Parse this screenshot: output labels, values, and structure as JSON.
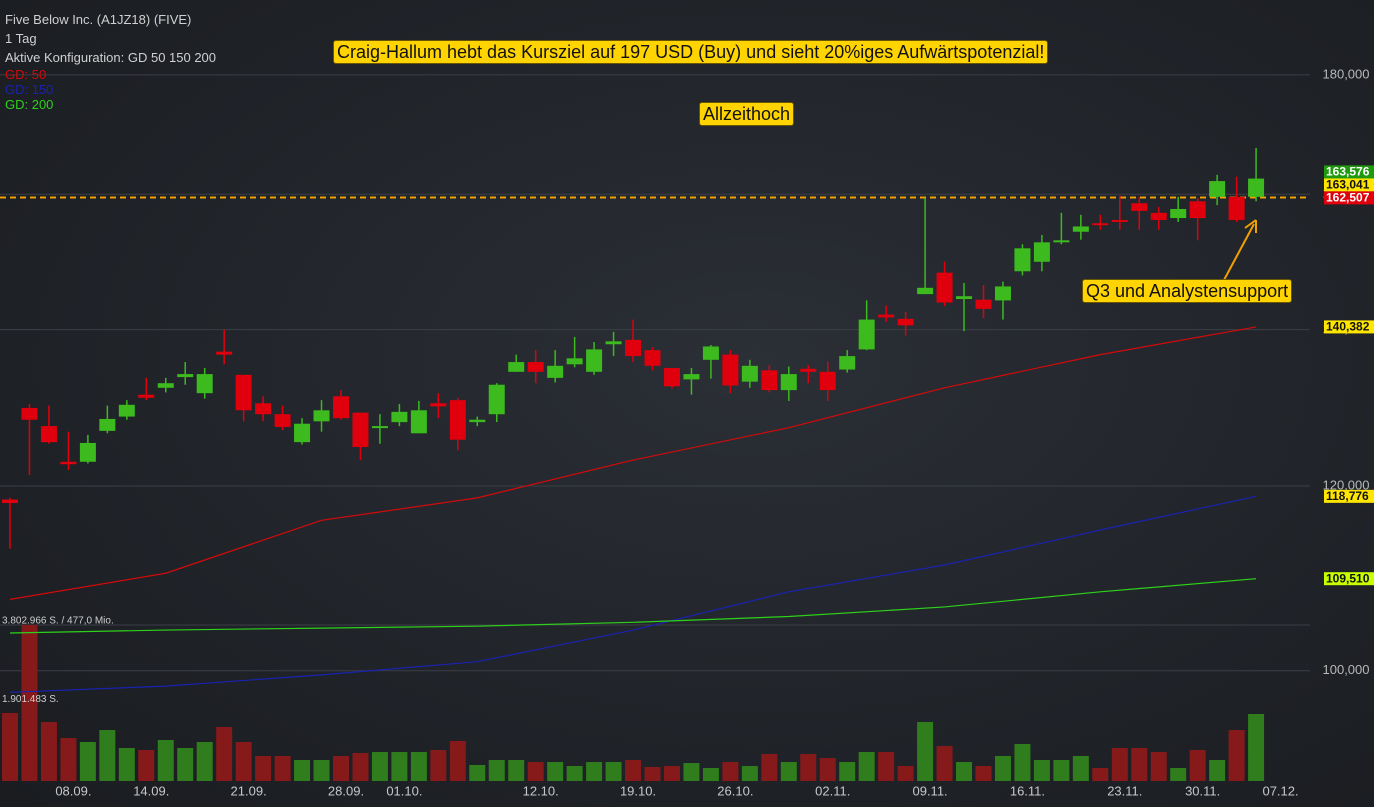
{
  "chart_data": {
    "type": "candlestick",
    "title": "Five Below Inc. (A1JZ18) (FIVE)",
    "subtitle": "1 Tag",
    "config_label": "Aktive Konfiguration: GD 50 150 200",
    "categories": [
      null,
      null,
      null,
      "08.09.",
      null,
      null,
      null,
      "14.09.",
      null,
      null,
      null,
      null,
      "21.09.",
      null,
      null,
      null,
      null,
      "28.09.",
      null,
      null,
      "01.10.",
      null,
      null,
      null,
      null,
      null,
      null,
      "12.10.",
      null,
      null,
      null,
      null,
      "19.10.",
      null,
      null,
      null,
      null,
      "26.10.",
      null,
      null,
      null,
      null,
      "02.11.",
      null,
      null,
      null,
      null,
      "09.11.",
      null,
      null,
      null,
      null,
      "16.11.",
      null,
      null,
      null,
      null,
      "23.11.",
      null,
      null,
      null,
      "30.11.",
      null,
      null,
      null,
      "07.12."
    ],
    "open": [
      118.4,
      129.6,
      127.3,
      122.9,
      122.9,
      126.7,
      128.5,
      131.3,
      132.2,
      133.6,
      131.5,
      137.0,
      133.9,
      130.2,
      128.8,
      125.3,
      127.9,
      131.1,
      129.0,
      127.1,
      127.8,
      126.4,
      130.2,
      130.6,
      127.8,
      128.8,
      134.3,
      135.6,
      133.5,
      135.3,
      134.3,
      138.0,
      138.6,
      137.2,
      134.8,
      133.3,
      135.9,
      136.6,
      133.0,
      134.5,
      131.9,
      134.7,
      134.3,
      134.6,
      137.3,
      142.1,
      141.5,
      145.0,
      148.1,
      144.3,
      144.2,
      144.1,
      148.3,
      149.7,
      152.6,
      154.2,
      155.5,
      156.0,
      158.6,
      157.1,
      156.3,
      158.9,
      159.6,
      159.6,
      159.6,
      null
    ],
    "high": [
      118.6,
      130.1,
      129.9,
      126.6,
      126.2,
      129.9,
      130.6,
      133.5,
      133.5,
      135.6,
      134.8,
      140.0,
      133.9,
      131.1,
      129.9,
      128.3,
      130.6,
      131.9,
      129.0,
      128.8,
      130.1,
      130.5,
      131.5,
      130.9,
      128.5,
      132.8,
      136.6,
      137.2,
      137.2,
      139.0,
      138.3,
      139.7,
      141.4,
      137.6,
      134.8,
      134.8,
      137.9,
      137.2,
      135.9,
      135.2,
      135.0,
      135.2,
      135.6,
      137.2,
      144.1,
      143.4,
      142.5,
      159.4,
      149.7,
      146.6,
      146.3,
      146.8,
      152.3,
      153.7,
      157.1,
      156.8,
      156.8,
      159.8,
      159.6,
      158.0,
      159.6,
      159.4,
      163.1,
      162.8,
      167.5,
      null
    ],
    "low": [
      112.8,
      121.3,
      125.1,
      121.9,
      122.7,
      126.4,
      128.1,
      130.6,
      131.6,
      132.6,
      130.8,
      135.3,
      127.9,
      127.9,
      126.8,
      125.0,
      126.6,
      128.1,
      123.1,
      125.1,
      127.3,
      126.4,
      128.3,
      124.3,
      127.3,
      127.8,
      134.3,
      132.8,
      132.9,
      134.9,
      133.9,
      136.4,
      135.6,
      134.5,
      132.1,
      131.3,
      133.4,
      131.5,
      132.2,
      131.6,
      130.5,
      132.8,
      130.5,
      134.2,
      137.2,
      141.1,
      139.2,
      145.0,
      143.3,
      139.8,
      141.6,
      141.4,
      147.7,
      148.3,
      152.3,
      153.0,
      154.5,
      154.5,
      154.5,
      154.5,
      155.7,
      152.9,
      158.3,
      155.7,
      158.9,
      null
    ],
    "close": [
      118.0,
      128.1,
      125.3,
      122.6,
      125.2,
      128.2,
      130.0,
      130.9,
      132.8,
      134.0,
      134.0,
      136.6,
      129.3,
      128.8,
      127.2,
      127.6,
      129.3,
      128.3,
      124.7,
      127.3,
      129.1,
      129.3,
      129.8,
      125.6,
      128.1,
      132.6,
      135.6,
      134.3,
      135.1,
      136.1,
      137.3,
      138.4,
      136.4,
      135.1,
      132.4,
      134.0,
      137.7,
      132.5,
      135.1,
      131.9,
      134.0,
      134.3,
      131.9,
      136.4,
      141.4,
      141.7,
      140.6,
      145.9,
      143.8,
      144.7,
      142.9,
      146.1,
      151.7,
      152.6,
      152.9,
      155.0,
      155.2,
      155.7,
      157.4,
      156.0,
      157.7,
      156.3,
      162.1,
      156.0,
      162.5,
      null
    ],
    "up_color": "#3cba1e",
    "down_color": "#e0000d",
    "ylim": [
      89.7,
      193.8
    ],
    "log_scale": true,
    "grid": true,
    "yticks": [
      {
        "value": 100,
        "label": "100,000"
      },
      {
        "value": 120,
        "label": "120,000"
      },
      {
        "value": 140,
        "label": "140,000"
      },
      {
        "value": 160,
        "label": "160,000"
      },
      {
        "value": 180,
        "label": "180,000"
      }
    ],
    "volume": {
      "values": [
        1647000,
        3780000,
        1429000,
        1041000,
        945000,
        1235000,
        799000,
        751000,
        993000,
        799000,
        945000,
        1308000,
        945000,
        606000,
        606000,
        509000,
        509000,
        606000,
        678000,
        702000,
        702000,
        702000,
        751000,
        969000,
        388000,
        509000,
        509000,
        460000,
        460000,
        363000,
        460000,
        460000,
        509000,
        339000,
        363000,
        436000,
        315000,
        460000,
        363000,
        654000,
        460000,
        654000,
        557000,
        460000,
        702000,
        702000,
        363000,
        1429000,
        848000,
        460000,
        363000,
        606000,
        896000,
        509000,
        509000,
        606000,
        315000,
        799000,
        799000,
        702000,
        315000,
        751000,
        509000,
        1235000,
        1623000,
        null
      ],
      "ylim": [
        0,
        3802966
      ],
      "yticks": [
        {
          "value": 1901483,
          "label": "1.901.483 S."
        },
        {
          "value": 3802966,
          "label": "3.802.966 S. / 477,0 Mio."
        }
      ],
      "up_color": "#2f7d1c",
      "down_color": "#861a1a"
    },
    "series": [
      {
        "name": "GD: 50",
        "color": "#d40a0a",
        "x": [
          0,
          8,
          16,
          24,
          32,
          40,
          48,
          56,
          64
        ],
        "values": [
          107.3,
          110.1,
          116.0,
          118.6,
          123.1,
          127.1,
          132.2,
          136.6,
          140.38
        ]
      },
      {
        "name": "GD: 150",
        "color": "#1a22b0",
        "x": [
          0,
          8,
          16,
          24,
          32,
          40,
          48,
          56,
          64
        ],
        "values": [
          97.9,
          98.5,
          99.6,
          100.9,
          104.1,
          108.1,
          111.0,
          114.9,
          118.78
        ]
      },
      {
        "name": "GD: 200",
        "color": "#2ed11a",
        "x": [
          0,
          8,
          16,
          24,
          32,
          40,
          48,
          56,
          64
        ],
        "values": [
          103.8,
          104.1,
          104.3,
          104.5,
          104.9,
          105.5,
          106.5,
          108.1,
          109.51
        ]
      }
    ],
    "hline": {
      "value": 159.5,
      "color": "#f0a000"
    },
    "price_tags": [
      {
        "value": 163.576,
        "label": "163,576",
        "color": "#1f9a0f"
      },
      {
        "value": 163.041,
        "label": "163,041",
        "color": "#ffe600"
      },
      {
        "value": 162.507,
        "label": "162,507",
        "color": "#e0000d"
      },
      {
        "value": 140.382,
        "label": "140,382",
        "color": "#ffe600"
      },
      {
        "value": 118.776,
        "label": "118,776",
        "color": "#ffe600"
      },
      {
        "value": 109.51,
        "label": "109,510",
        "color": "#c8ff00"
      }
    ],
    "annotations": [
      "Craig-Hallum hebt das Kursziel auf 197 USD (Buy) und sieht 20%iges Aufwärtspotenzial!",
      "Allzeithoch",
      "Q3 und Analystensupport"
    ]
  }
}
